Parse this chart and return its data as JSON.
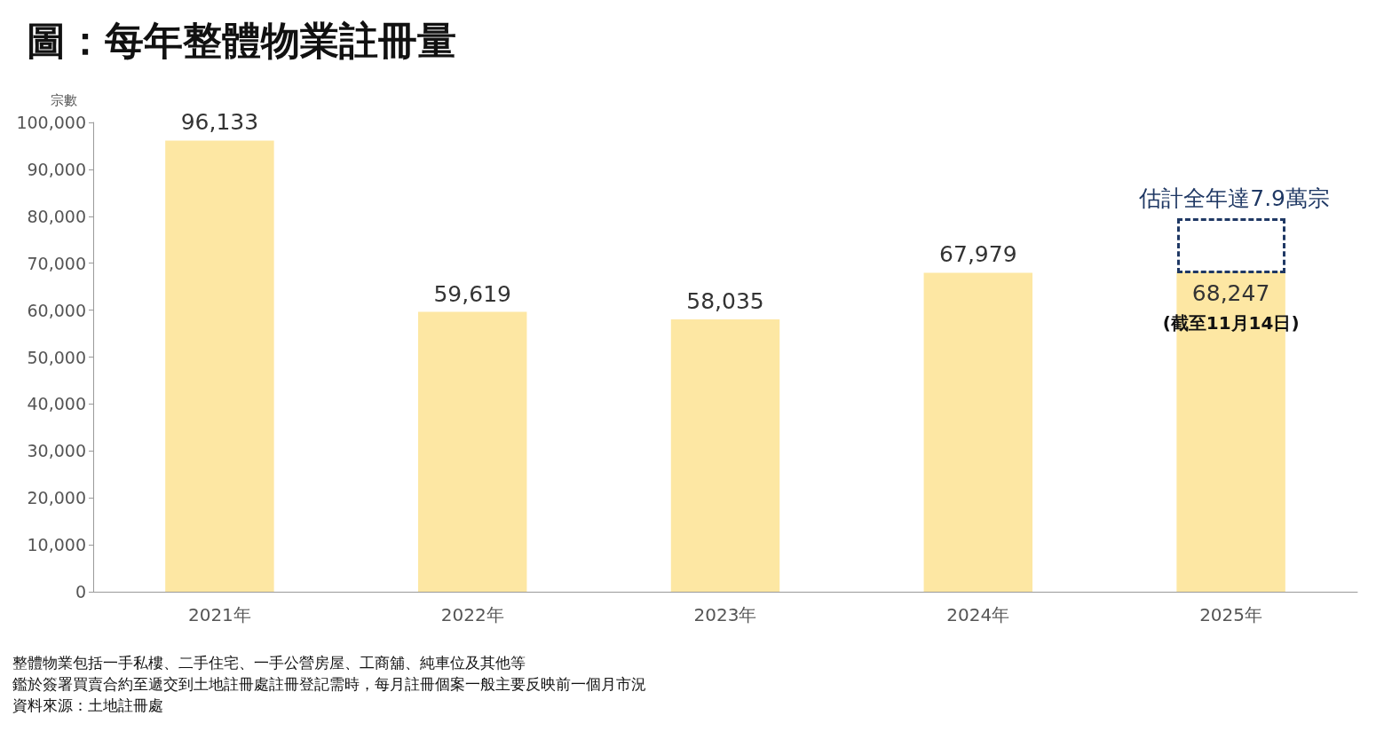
{
  "chart_data": {
    "type": "bar",
    "title": "圖：每年整體物業註冊量",
    "ylabel": "宗數",
    "categories": [
      "2021年",
      "2022年",
      "2023年",
      "2024年",
      "2025年"
    ],
    "values": [
      96133,
      59619,
      58035,
      67979,
      68247
    ],
    "color": "#fde7a3",
    "value_labels": [
      "96,133",
      "59,619",
      "58,035",
      "67,979",
      "68,247"
    ],
    "ylim": [
      0,
      100000
    ],
    "yticks": [
      0,
      {
        "value": 10000,
        "label": "10,000"
      },
      {
        "value": 20000,
        "label": "20,000"
      },
      {
        "value": 30000,
        "label": "30,000"
      },
      {
        "value": 40000,
        "label": "40,000"
      },
      {
        "value": 50000,
        "label": "50,000"
      },
      {
        "value": 60000,
        "label": "60,000"
      },
      {
        "value": 70000,
        "label": "70,000"
      },
      {
        "value": 80000,
        "label": "80,000"
      },
      {
        "value": 90000,
        "label": "90,000"
      },
      {
        "value": 100000,
        "label": "100,000"
      }
    ],
    "grid": false,
    "annotations": [
      "估計全年達7.9萬宗",
      "(截至11月14日)",
      "整體物業包括一手私樓、二手住宅、一手公營房屋、工商舖、純車位及其他等",
      "鑑於簽署買賣合約至遞交到土地註冊處註冊登記需時，每月註冊個案一般主要反映前一個月市況",
      "資料來源：土地註冊處"
    ]
  }
}
